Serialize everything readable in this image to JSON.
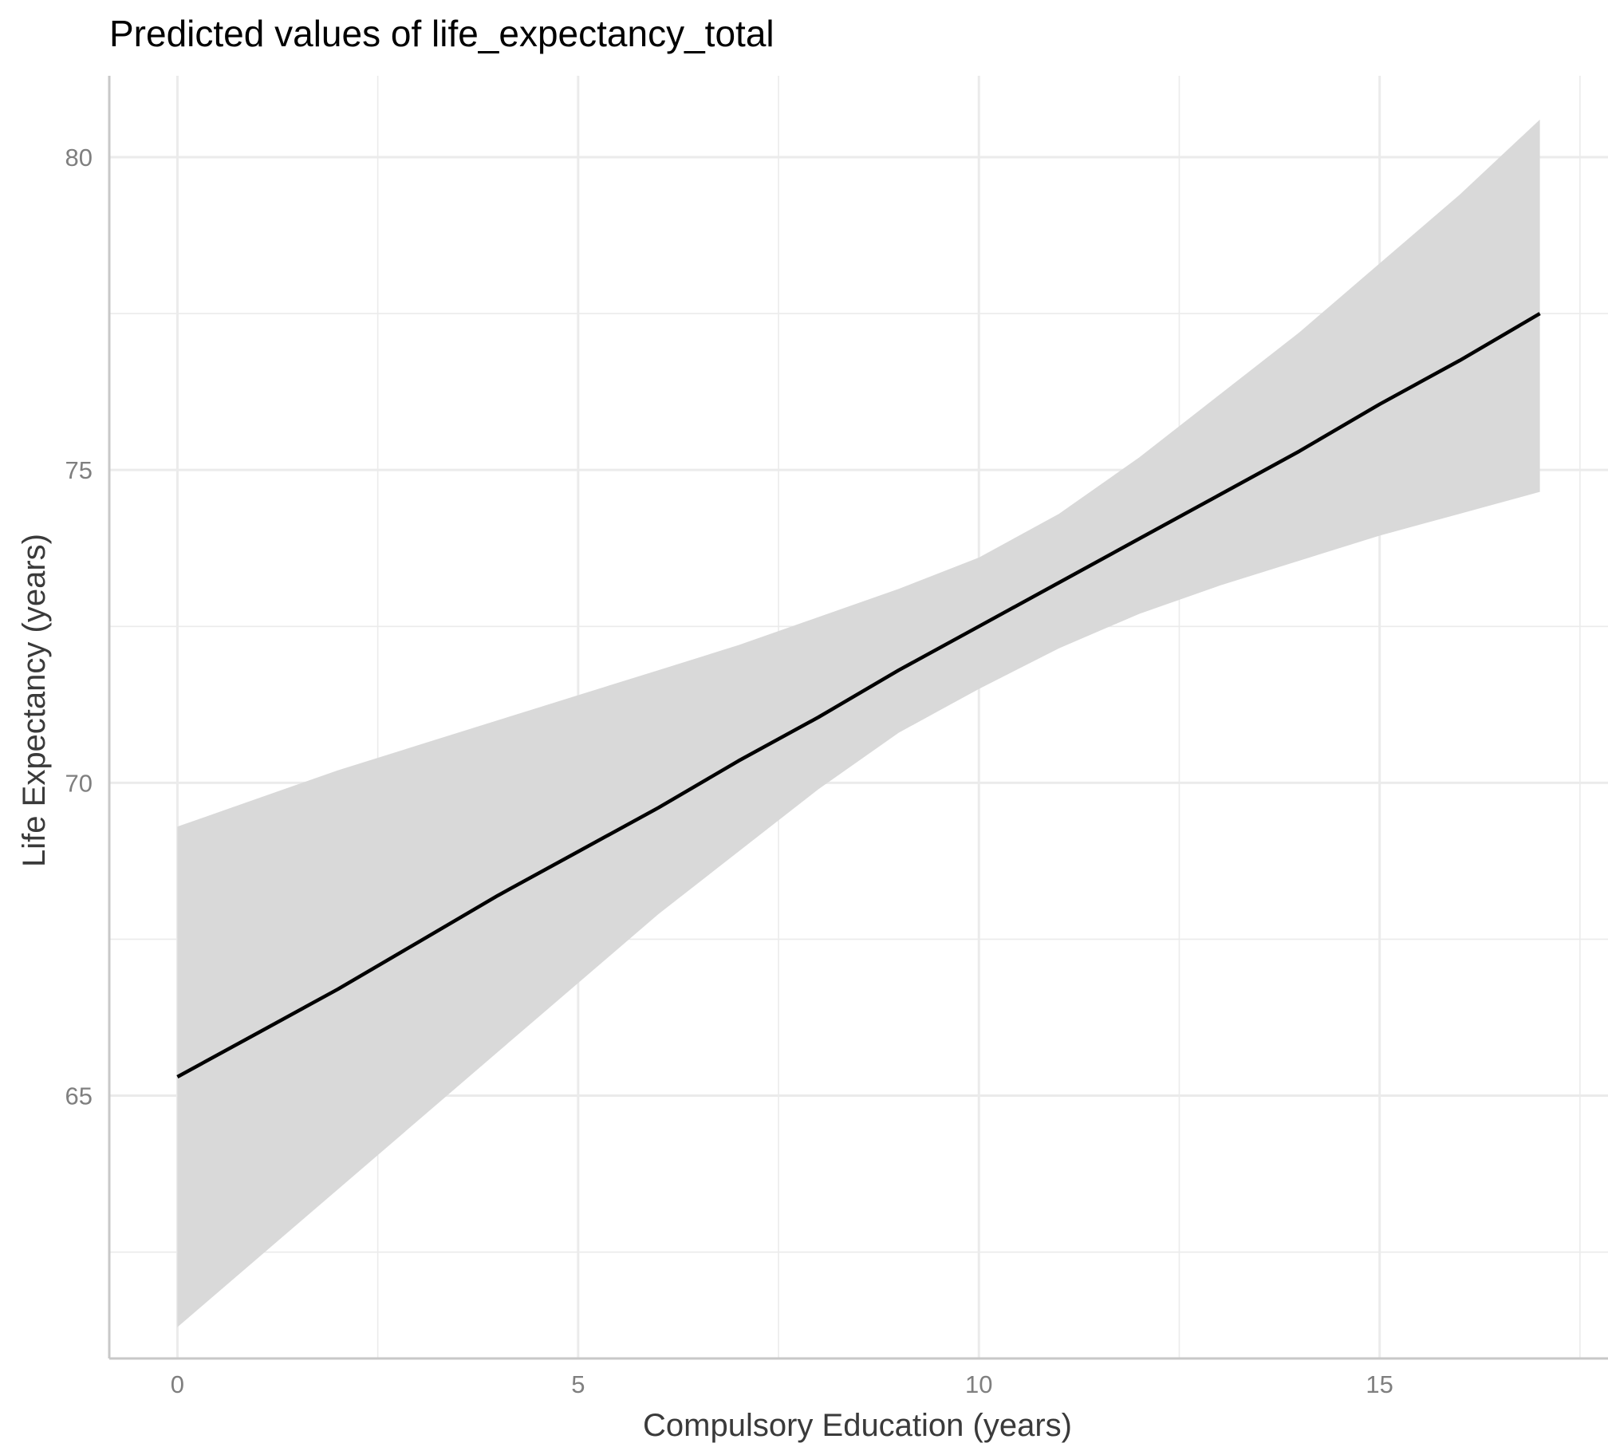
{
  "chart_data": {
    "type": "line",
    "title": "Predicted values of life_expectancy_total",
    "xlabel": "Compulsory Education (years)",
    "ylabel": "Life Expectancy (years)",
    "xlim": [
      -0.85,
      17.85
    ],
    "ylim": [
      60.8,
      81.3
    ],
    "x_ticks": [
      0,
      5,
      10,
      15
    ],
    "x_tick_labels": [
      "0",
      "5",
      "10",
      "15"
    ],
    "y_ticks": [
      65,
      70,
      75,
      80
    ],
    "y_tick_labels": [
      "65",
      "70",
      "75",
      "80"
    ],
    "x_minor_ticks": [
      2.5,
      7.5,
      12.5,
      17.5
    ],
    "y_minor_ticks": [
      62.5,
      67.5,
      72.5,
      77.5
    ],
    "grid": true,
    "legend": "none",
    "colors": {
      "line": "#000000",
      "ribbon": "#d9d9d9",
      "grid": "#ebebeb",
      "axis": "#c8c8c8"
    },
    "series": [
      {
        "x": [
          0,
          1,
          2,
          3,
          4,
          5,
          6,
          7,
          8,
          9,
          10,
          11,
          12,
          13,
          14,
          15,
          16,
          17
        ],
        "y": [
          65.3,
          66.0,
          66.7,
          67.45,
          68.2,
          68.9,
          69.6,
          70.35,
          71.05,
          71.8,
          72.5,
          73.2,
          73.9,
          74.6,
          75.3,
          76.05,
          76.75,
          77.5
        ],
        "ci_low": [
          61.3,
          62.4,
          63.5,
          64.6,
          65.7,
          66.8,
          67.9,
          68.9,
          69.9,
          70.8,
          71.5,
          72.15,
          72.7,
          73.15,
          73.55,
          73.95,
          74.3,
          74.65
        ],
        "ci_high": [
          69.3,
          69.75,
          70.2,
          70.6,
          71.0,
          71.4,
          71.8,
          72.2,
          72.65,
          73.1,
          73.6,
          74.3,
          75.2,
          76.2,
          77.2,
          78.3,
          79.4,
          80.6
        ]
      }
    ]
  }
}
